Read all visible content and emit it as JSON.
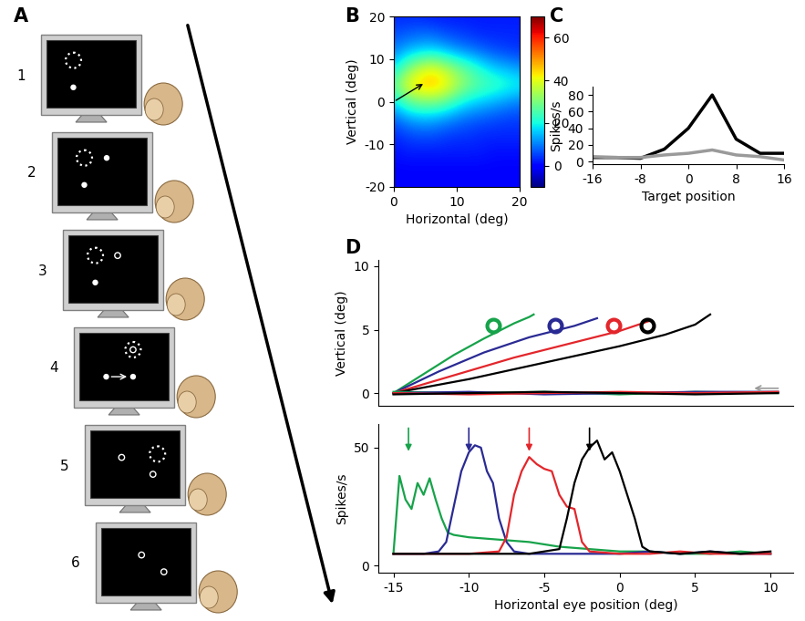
{
  "diagram": {
    "panel_label": "A",
    "steps": [
      "1",
      "2",
      "3",
      "4",
      "5",
      "6"
    ]
  },
  "chart_data": [
    {
      "panel_label": "B",
      "type": "heatmap",
      "x": [
        0,
        2,
        4,
        6,
        8,
        10,
        12,
        14,
        16,
        18,
        20
      ],
      "y": [
        20,
        16,
        12,
        8,
        4,
        0,
        -4,
        -8,
        -12,
        -16,
        -20
      ],
      "cells": [
        [
          3,
          3,
          3,
          2,
          2,
          2,
          2,
          2,
          2,
          2,
          2
        ],
        [
          6,
          7,
          8,
          8,
          6,
          5,
          4,
          3,
          3,
          3,
          3
        ],
        [
          10,
          14,
          16,
          17,
          15,
          12,
          10,
          8,
          6,
          5,
          4
        ],
        [
          18,
          28,
          36,
          40,
          36,
          30,
          25,
          20,
          16,
          14,
          12
        ],
        [
          28,
          40,
          46,
          48,
          44,
          36,
          30,
          26,
          24,
          22,
          20
        ],
        [
          18,
          26,
          30,
          30,
          28,
          22,
          18,
          16,
          14,
          12,
          10
        ],
        [
          8,
          12,
          14,
          14,
          12,
          10,
          8,
          7,
          6,
          5,
          5
        ],
        [
          3,
          5,
          6,
          6,
          5,
          4,
          4,
          3,
          3,
          3,
          3
        ],
        [
          1,
          2,
          2,
          2,
          2,
          2,
          2,
          2,
          1,
          1,
          1
        ],
        [
          0,
          0,
          0,
          0,
          0,
          0,
          0,
          0,
          0,
          0,
          0
        ],
        [
          0,
          0,
          0,
          0,
          0,
          0,
          0,
          0,
          0,
          0,
          0
        ]
      ],
      "xlim": [
        0,
        20
      ],
      "ylim": [
        -20,
        20
      ],
      "xticks": [
        0,
        10,
        20
      ],
      "yticks": [
        -20,
        -10,
        0,
        10,
        20
      ],
      "x_label": "Horizontal (deg)",
      "y_label": "Vertical (deg)",
      "colorbar": {
        "range": [
          -10,
          70
        ],
        "ticks": [
          0,
          20,
          40,
          60
        ]
      },
      "arrow": {
        "from": [
          0,
          0
        ],
        "to": [
          5,
          4.5
        ]
      }
    },
    {
      "panel_label": "C",
      "type": "line",
      "x": [
        -16,
        -12,
        -8,
        -4,
        0,
        4,
        8,
        12,
        16
      ],
      "series": [
        {
          "color": "#000000",
          "values": [
            5,
            5,
            4,
            15,
            40,
            80,
            27,
            10,
            10
          ]
        },
        {
          "color": "#9a9a9a",
          "values": [
            6,
            5,
            5,
            8,
            10,
            14,
            8,
            6,
            2
          ]
        }
      ],
      "xlim": [
        -16,
        16
      ],
      "ylim": [
        -3,
        90
      ],
      "xticks": [
        -16,
        -8,
        0,
        8,
        16
      ],
      "yticks": [
        0,
        20,
        40,
        60,
        80
      ],
      "x_label": "Target position",
      "y_label": "Spikes/s"
    },
    {
      "panel_label": "D",
      "type": "line",
      "series": [
        {
          "color": "#17a34a",
          "x": [
            -15,
            -13,
            -11,
            -9,
            -7,
            -6,
            -5.7
          ],
          "values": [
            0,
            1.5,
            3,
            4.3,
            5.5,
            6,
            6.2
          ],
          "target": [
            -8.4,
            5.3
          ]
        },
        {
          "color": "#2a2a94",
          "x": [
            -15,
            -12,
            -9,
            -6,
            -3,
            -1.5
          ],
          "values": [
            0,
            1.7,
            3.2,
            4.4,
            5.3,
            5.9
          ],
          "target": [
            -4.3,
            5.3
          ]
        },
        {
          "color": "#e3262b",
          "x": [
            -15,
            -11,
            -7,
            -3,
            0,
            2
          ],
          "values": [
            0,
            1.4,
            2.8,
            4,
            4.9,
            5.7
          ],
          "target": [
            -0.4,
            5.3
          ]
        },
        {
          "color": "#000000",
          "x": [
            -15,
            -10,
            -5,
            0,
            3,
            5,
            6
          ],
          "values": [
            0,
            1.1,
            2.4,
            3.7,
            4.6,
            5.4,
            6.2
          ],
          "target": [
            1.8,
            5.3
          ]
        },
        {
          "color": "#17a34a",
          "x": [
            -15,
            -10,
            -5,
            0,
            5,
            10.5
          ],
          "values": [
            0.1,
            0,
            0.1,
            -0.1,
            0.1,
            0
          ]
        },
        {
          "color": "#2a2a94",
          "x": [
            -15,
            -10,
            -5,
            0,
            5,
            10.5
          ],
          "values": [
            0,
            0.1,
            -0.1,
            0,
            0.1,
            0.1
          ]
        },
        {
          "color": "#e3262b",
          "x": [
            -15,
            -10,
            -5,
            0,
            5,
            10.5
          ],
          "values": [
            0,
            -0.1,
            0,
            0.1,
            0,
            0.1
          ]
        },
        {
          "color": "#000000",
          "x": [
            -15,
            -10,
            -5,
            0,
            5,
            10.5
          ],
          "values": [
            -0.1,
            0,
            0.1,
            0,
            -0.1,
            0
          ]
        }
      ],
      "xlim": [
        -16,
        11.5
      ],
      "ylim": [
        -1,
        10.5
      ],
      "yticks": [
        0,
        5,
        10
      ],
      "tick_labels": "y",
      "y_label": "Vertical (deg)"
    },
    {
      "type": "line",
      "series": [
        {
          "color": "#17a34a",
          "arrow_x": -14,
          "x": [
            -15,
            -14.6,
            -14.2,
            -13.8,
            -13.4,
            -13,
            -12.6,
            -12.2,
            -11.8,
            -11.4,
            -11,
            -10,
            -8,
            -6,
            -4,
            -2,
            0,
            2,
            4,
            6,
            8,
            10
          ],
          "values": [
            5,
            38,
            28,
            24,
            35,
            30,
            37,
            28,
            20,
            14,
            13,
            12,
            11,
            10,
            8,
            7,
            6,
            6,
            5,
            5,
            6,
            5
          ]
        },
        {
          "color": "#2a2a94",
          "arrow_x": -10,
          "x": [
            -15,
            -13,
            -12,
            -11.5,
            -11,
            -10.5,
            -10,
            -9.6,
            -9.2,
            -8.8,
            -8.4,
            -8,
            -7.5,
            -7,
            -6,
            -4,
            -2,
            0,
            2,
            4,
            6,
            8,
            10
          ],
          "values": [
            5,
            5,
            6,
            10,
            25,
            40,
            48,
            51,
            50,
            40,
            35,
            20,
            10,
            6,
            5,
            5,
            5,
            5,
            6,
            5,
            6,
            5,
            5
          ]
        },
        {
          "color": "#e3262b",
          "arrow_x": -6,
          "x": [
            -15,
            -10,
            -8,
            -7.5,
            -7,
            -6.5,
            -6,
            -5.5,
            -5,
            -4.5,
            -4,
            -3.5,
            -3,
            -2.5,
            -2,
            0,
            2,
            4,
            6,
            8,
            10
          ],
          "values": [
            5,
            5,
            6,
            12,
            30,
            40,
            46,
            43,
            41,
            40,
            30,
            25,
            24,
            10,
            6,
            5,
            5,
            6,
            5,
            5,
            5
          ]
        },
        {
          "color": "#000000",
          "arrow_x": -2,
          "x": [
            -15,
            -10,
            -6,
            -4,
            -3.5,
            -3,
            -2.5,
            -2,
            -1.5,
            -1,
            -0.5,
            0,
            0.5,
            1,
            1.5,
            2,
            4,
            6,
            8,
            10
          ],
          "values": [
            5,
            5,
            5,
            7,
            20,
            35,
            45,
            50,
            53,
            45,
            48,
            40,
            30,
            20,
            8,
            6,
            5,
            6,
            5,
            6
          ]
        }
      ],
      "xlim": [
        -16,
        11.5
      ],
      "ylim": [
        -3,
        60
      ],
      "xticks": [
        -15,
        -10,
        -5,
        0,
        5,
        10
      ],
      "yticks": [
        0,
        50
      ],
      "x_label": "Horizontal eye position (deg)",
      "y_label": "Spikes/s"
    }
  ]
}
